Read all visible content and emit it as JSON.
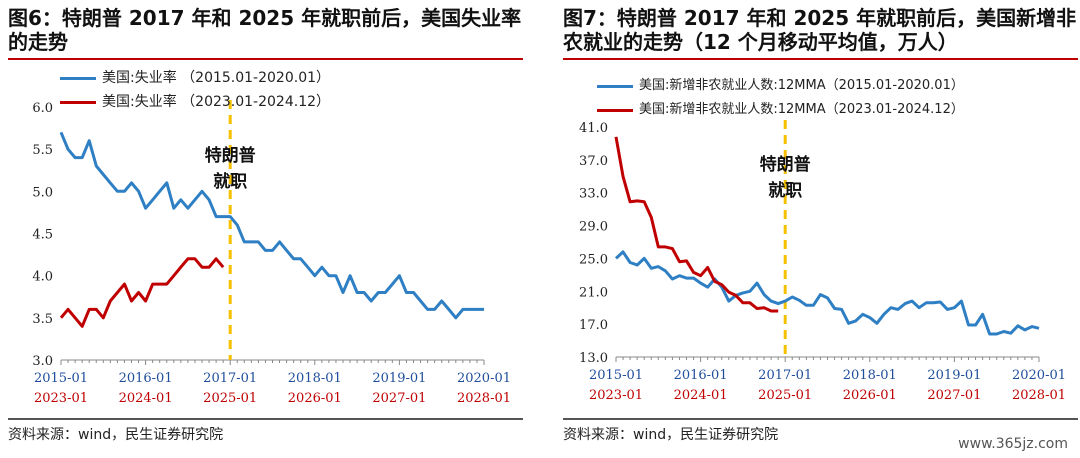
{
  "left": {
    "title": "图6：特朗普 2017 年和 2025 年就职前后，美国失业率的走势",
    "legend": [
      "美国:失业率 （2015.01-2020.01）",
      "美国:失业率 （2023.01-2024.12）"
    ],
    "annotation": [
      "特朗普",
      "就职"
    ],
    "source": "资料来源：wind，民生证券研究院"
  },
  "right": {
    "title": "图7：特朗普 2017 年和 2025 年就职前后，美国新增非农就业的走势（12 个月移动平均值，万人）",
    "legend": [
      "美国:新增非农就业人数:12MMA（2015.01-2020.01）",
      "美国:新增非农就业人数:12MMA（2023.01-2024.12）"
    ],
    "annotation": [
      "特朗普",
      "就职"
    ],
    "source": "资料来源：wind，民生证券研究院"
  },
  "watermark": "www.365jz.com",
  "colors": {
    "blue": "#2e7fc3",
    "red": "#c00000",
    "marker": "#f5c000",
    "xtop": "#1f4e9c",
    "xbottom": "#c00000"
  },
  "chart_data": [
    {
      "type": "line",
      "title": "图6：特朗普 2017 年和 2025 年就职前后，美国失业率的走势",
      "x_ticks_top": [
        "2015-01",
        "2016-01",
        "2017-01",
        "2018-01",
        "2019-01",
        "2020-01"
      ],
      "x_ticks_bottom": [
        "2023-01",
        "2024-01",
        "2025-01",
        "2026-01",
        "2027-01",
        "2028-01"
      ],
      "y_ticks": [
        "3.0",
        "3.5",
        "4.0",
        "4.5",
        "5.0",
        "5.5",
        "6.0"
      ],
      "ylim": [
        3.0,
        6.0
      ],
      "marker_month": 24,
      "series": [
        {
          "name": "美国:失业率 （2015.01-2020.01）",
          "color": "#2e7fc3",
          "values": [
            5.7,
            5.5,
            5.4,
            5.4,
            5.6,
            5.3,
            5.2,
            5.1,
            5.0,
            5.0,
            5.1,
            5.0,
            4.8,
            4.9,
            5.0,
            5.1,
            4.8,
            4.9,
            4.8,
            4.9,
            5.0,
            4.9,
            4.7,
            4.7,
            4.7,
            4.6,
            4.4,
            4.4,
            4.4,
            4.3,
            4.3,
            4.4,
            4.3,
            4.2,
            4.2,
            4.1,
            4.0,
            4.1,
            4.0,
            4.0,
            3.8,
            4.0,
            3.8,
            3.8,
            3.7,
            3.8,
            3.8,
            3.9,
            4.0,
            3.8,
            3.8,
            3.7,
            3.6,
            3.6,
            3.7,
            3.6,
            3.5,
            3.6,
            3.6,
            3.6,
            3.6
          ]
        },
        {
          "name": "美国:失业率 （2023.01-2024.12）",
          "color": "#c00000",
          "values": [
            3.5,
            3.6,
            3.5,
            3.4,
            3.6,
            3.6,
            3.5,
            3.7,
            3.8,
            3.9,
            3.7,
            3.8,
            3.7,
            3.9,
            3.9,
            3.9,
            4.0,
            4.1,
            4.2,
            4.2,
            4.1,
            4.1,
            4.2,
            4.1
          ]
        }
      ]
    },
    {
      "type": "line",
      "title": "图7：特朗普 2017 年和 2025 年就职前后，美国新增非农就业的走势（12 个月移动平均值，万人）",
      "x_ticks_top": [
        "2015-01",
        "2016-01",
        "2017-01",
        "2018-01",
        "2019-01",
        "2020-01"
      ],
      "x_ticks_bottom": [
        "2023-01",
        "2024-01",
        "2025-01",
        "2026-01",
        "2027-01",
        "2028-01"
      ],
      "y_ticks": [
        "13.0",
        "17.0",
        "21.0",
        "25.0",
        "29.0",
        "33.0",
        "37.0",
        "41.0"
      ],
      "ylim": [
        13.0,
        41.0
      ],
      "marker_month": 24,
      "series": [
        {
          "name": "美国:新增非农就业人数:12MMA（2015.01-2020.01）",
          "color": "#2e7fc3",
          "values": [
            25.0,
            25.8,
            24.5,
            24.2,
            25.0,
            23.8,
            24.0,
            23.5,
            22.5,
            22.9,
            22.6,
            22.6,
            22.0,
            21.5,
            22.5,
            21.5,
            19.8,
            20.5,
            20.8,
            21.0,
            22.0,
            20.6,
            19.8,
            19.5,
            19.8,
            20.3,
            19.9,
            19.3,
            19.3,
            20.6,
            20.2,
            18.9,
            18.8,
            17.1,
            17.4,
            18.2,
            17.8,
            17.1,
            18.2,
            19.0,
            18.8,
            19.5,
            19.8,
            19.0,
            19.6,
            19.6,
            19.7,
            18.8,
            19.0,
            19.8,
            16.9,
            16.9,
            18.2,
            15.8,
            15.8,
            16.1,
            15.9,
            16.8,
            16.3,
            16.7,
            16.5
          ]
        },
        {
          "name": "美国:新增非农就业人数:12MMA（2023.01-2024.12）",
          "color": "#c00000",
          "values": [
            39.8,
            35.0,
            31.9,
            32.0,
            31.9,
            30.0,
            26.4,
            26.4,
            26.2,
            24.6,
            24.7,
            23.3,
            22.9,
            23.9,
            22.2,
            21.8,
            20.9,
            20.5,
            19.6,
            19.6,
            18.9,
            19.0,
            18.6,
            18.6
          ]
        }
      ]
    }
  ]
}
